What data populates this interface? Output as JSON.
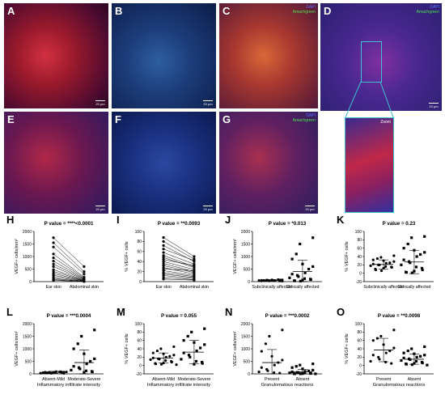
{
  "micrographs": {
    "A": {
      "label": "A",
      "scale": "20 µm"
    },
    "B": {
      "label": "B",
      "scale": "20 µm"
    },
    "C": {
      "label": "C",
      "legend": [
        "DAPI",
        "Amachgreen"
      ]
    },
    "D": {
      "label": "D",
      "legend": [
        "DAPI",
        "Amachgreen"
      ],
      "scale": "10 µm"
    },
    "E": {
      "label": "E",
      "scale": "20 µm"
    },
    "F": {
      "label": "F",
      "scale": "20 µm"
    },
    "G": {
      "label": "G",
      "legend": [
        "DAPI",
        "Amachgreen"
      ],
      "scale": "20 µm"
    },
    "D_inset": {
      "label": "Zoom"
    }
  },
  "colors": {
    "red_channel": "#c01828",
    "green_channel": "#40b040",
    "blue_channel": "#2838b0",
    "inset_border": "#40c0d0"
  },
  "chart_data": [
    {
      "panel": "H",
      "type": "scatter",
      "title": "P value = ****<0.0001",
      "ylabel": "VEGF+ cells/mm²",
      "xlabel": "",
      "categories": [
        "Ear skin",
        "Abdominal skin"
      ],
      "paired": true,
      "ylim": [
        0,
        2000
      ],
      "yticks": [
        0,
        500,
        1000,
        1500,
        2000
      ],
      "series": [
        {
          "values": [
            [
              1750,
              600
            ],
            [
              1550,
              400
            ],
            [
              1380,
              300
            ],
            [
              1100,
              180
            ],
            [
              950,
              150
            ],
            [
              820,
              120
            ],
            [
              700,
              100
            ],
            [
              600,
              80
            ],
            [
              480,
              60
            ],
            [
              400,
              50
            ],
            [
              320,
              40
            ],
            [
              250,
              30
            ],
            [
              180,
              20
            ],
            [
              120,
              15
            ],
            [
              80,
              10
            ],
            [
              50,
              5
            ]
          ]
        }
      ]
    },
    {
      "panel": "I",
      "type": "scatter",
      "title": "P value = **0.0093",
      "ylabel": "% VEGF+ cells",
      "xlabel": "",
      "categories": [
        "Ear skin",
        "Abdominal skin"
      ],
      "paired": true,
      "ylim": [
        0,
        100
      ],
      "yticks": [
        0,
        20,
        40,
        60,
        80,
        100
      ],
      "series": [
        {
          "values": [
            [
              88,
              50
            ],
            [
              80,
              45
            ],
            [
              72,
              40
            ],
            [
              65,
              42
            ],
            [
              58,
              35
            ],
            [
              52,
              30
            ],
            [
              48,
              28
            ],
            [
              44,
              32
            ],
            [
              40,
              24
            ],
            [
              36,
              20
            ],
            [
              32,
              18
            ],
            [
              28,
              15
            ],
            [
              25,
              22
            ],
            [
              22,
              12
            ],
            [
              18,
              10
            ],
            [
              15,
              8
            ],
            [
              12,
              6
            ],
            [
              8,
              4
            ],
            [
              5,
              3
            ]
          ]
        }
      ]
    },
    {
      "panel": "J",
      "type": "scatter",
      "title": "P value = *0.013",
      "ylabel": "VEGF+ cells/mm²",
      "xlabel": "",
      "categories": [
        "Subclinically affected",
        "Clinically affected"
      ],
      "ylim": [
        0,
        2000
      ],
      "yticks": [
        0,
        500,
        1000,
        1500,
        2000
      ],
      "groups": [
        {
          "mean": 50,
          "sd": 30,
          "values": [
            20,
            30,
            40,
            50,
            60,
            70,
            80,
            40,
            30,
            60,
            55,
            45,
            35,
            25,
            65,
            70,
            50
          ]
        },
        {
          "mean": 400,
          "sd": 450,
          "values": [
            1750,
            1500,
            1100,
            900,
            700,
            600,
            500,
            350,
            300,
            250,
            200,
            150,
            120,
            100,
            80,
            60,
            40,
            30,
            20
          ]
        }
      ]
    },
    {
      "panel": "K",
      "type": "scatter",
      "title": "P value = 0.23",
      "ylabel": "% VEGF+ cells",
      "xlabel": "",
      "categories": [
        "Subclinically affected",
        "Clinically affected"
      ],
      "ylim": [
        -20,
        100
      ],
      "yticks": [
        -20,
        0,
        20,
        40,
        60,
        80,
        100
      ],
      "groups": [
        {
          "mean": 21,
          "sd": 11,
          "values": [
            42,
            38,
            35,
            32,
            30,
            28,
            25,
            24,
            22,
            20,
            20,
            18,
            16,
            15,
            14,
            12,
            10,
            8,
            6
          ]
        },
        {
          "mean": 27,
          "sd": 28,
          "values": [
            88,
            85,
            70,
            60,
            55,
            50,
            45,
            40,
            32,
            28,
            25,
            20,
            15,
            12,
            8,
            5,
            3,
            2,
            1
          ]
        }
      ]
    },
    {
      "panel": "L",
      "type": "scatter",
      "title": "P value = ***0.0004",
      "ylabel": "VEGF+ cells/mm²",
      "xlabel": "Inflammatory infiltrate intensity",
      "categories": [
        "Absent-Mild",
        "Moderate-Severe"
      ],
      "ylim": [
        0,
        2000
      ],
      "yticks": [
        0,
        500,
        1000,
        1500,
        2000
      ],
      "groups": [
        {
          "mean": 60,
          "sd": 40,
          "values": [
            20,
            30,
            40,
            50,
            60,
            70,
            80,
            90,
            40,
            50,
            60,
            30,
            70,
            80,
            45,
            55,
            65,
            35,
            25,
            75
          ]
        },
        {
          "mean": 450,
          "sd": 500,
          "values": [
            1750,
            1500,
            1200,
            1000,
            800,
            600,
            500,
            400,
            300,
            250,
            200,
            150,
            120,
            100,
            80,
            60
          ]
        }
      ]
    },
    {
      "panel": "M",
      "type": "scatter",
      "title": "P value = 0.055",
      "ylabel": "% VEGF+ cells",
      "xlabel": "Inflammatory infiltrate intensity",
      "categories": [
        "Absent-Mild",
        "Moderate-Severe"
      ],
      "ylim": [
        -20,
        100
      ],
      "yticks": [
        -20,
        0,
        20,
        40,
        60,
        80,
        100
      ],
      "groups": [
        {
          "mean": 18,
          "sd": 12,
          "values": [
            45,
            40,
            35,
            30,
            28,
            25,
            22,
            20,
            18,
            16,
            15,
            14,
            12,
            10,
            8,
            6,
            5,
            4,
            3,
            2
          ]
        },
        {
          "mean": 32,
          "sd": 28,
          "values": [
            88,
            80,
            70,
            60,
            55,
            50,
            42,
            35,
            30,
            25,
            20,
            15,
            10,
            8,
            5,
            3
          ]
        }
      ]
    },
    {
      "panel": "N",
      "type": "scatter",
      "title": "P value = ***0.0002",
      "ylabel": "VEGF+ cells/mm²",
      "xlabel": "Granulomatous reactions",
      "categories": [
        "Present",
        "Absent"
      ],
      "ylim": [
        0,
        2000
      ],
      "yticks": [
        0,
        500,
        1000,
        1500,
        2000
      ],
      "groups": [
        {
          "mean": 450,
          "sd": 520,
          "values": [
            1750,
            1500,
            1200,
            900,
            700,
            550,
            450,
            350,
            250,
            180,
            120,
            80,
            50,
            30
          ]
        },
        {
          "mean": 80,
          "sd": 100,
          "values": [
            400,
            350,
            300,
            250,
            200,
            150,
            120,
            100,
            80,
            60,
            50,
            40,
            30,
            20,
            15,
            10,
            8,
            5,
            3,
            2
          ]
        }
      ]
    },
    {
      "panel": "O",
      "type": "scatter",
      "title": "P value = **0.0098",
      "ylabel": "% VEGF+ cells",
      "xlabel": "Granulomatous reactions",
      "categories": [
        "Present",
        "Absent"
      ],
      "ylim": [
        -20,
        100
      ],
      "yticks": [
        -20,
        0,
        20,
        40,
        60,
        80,
        100
      ],
      "groups": [
        {
          "mean": 37,
          "sd": 28,
          "values": [
            85,
            70,
            65,
            60,
            50,
            42,
            35,
            30,
            25,
            20,
            15,
            10,
            8,
            5
          ]
        },
        {
          "mean": 15,
          "sd": 12,
          "values": [
            45,
            40,
            35,
            30,
            28,
            25,
            22,
            20,
            18,
            16,
            14,
            12,
            10,
            8,
            6,
            5,
            4,
            3,
            2,
            1
          ]
        }
      ]
    }
  ]
}
